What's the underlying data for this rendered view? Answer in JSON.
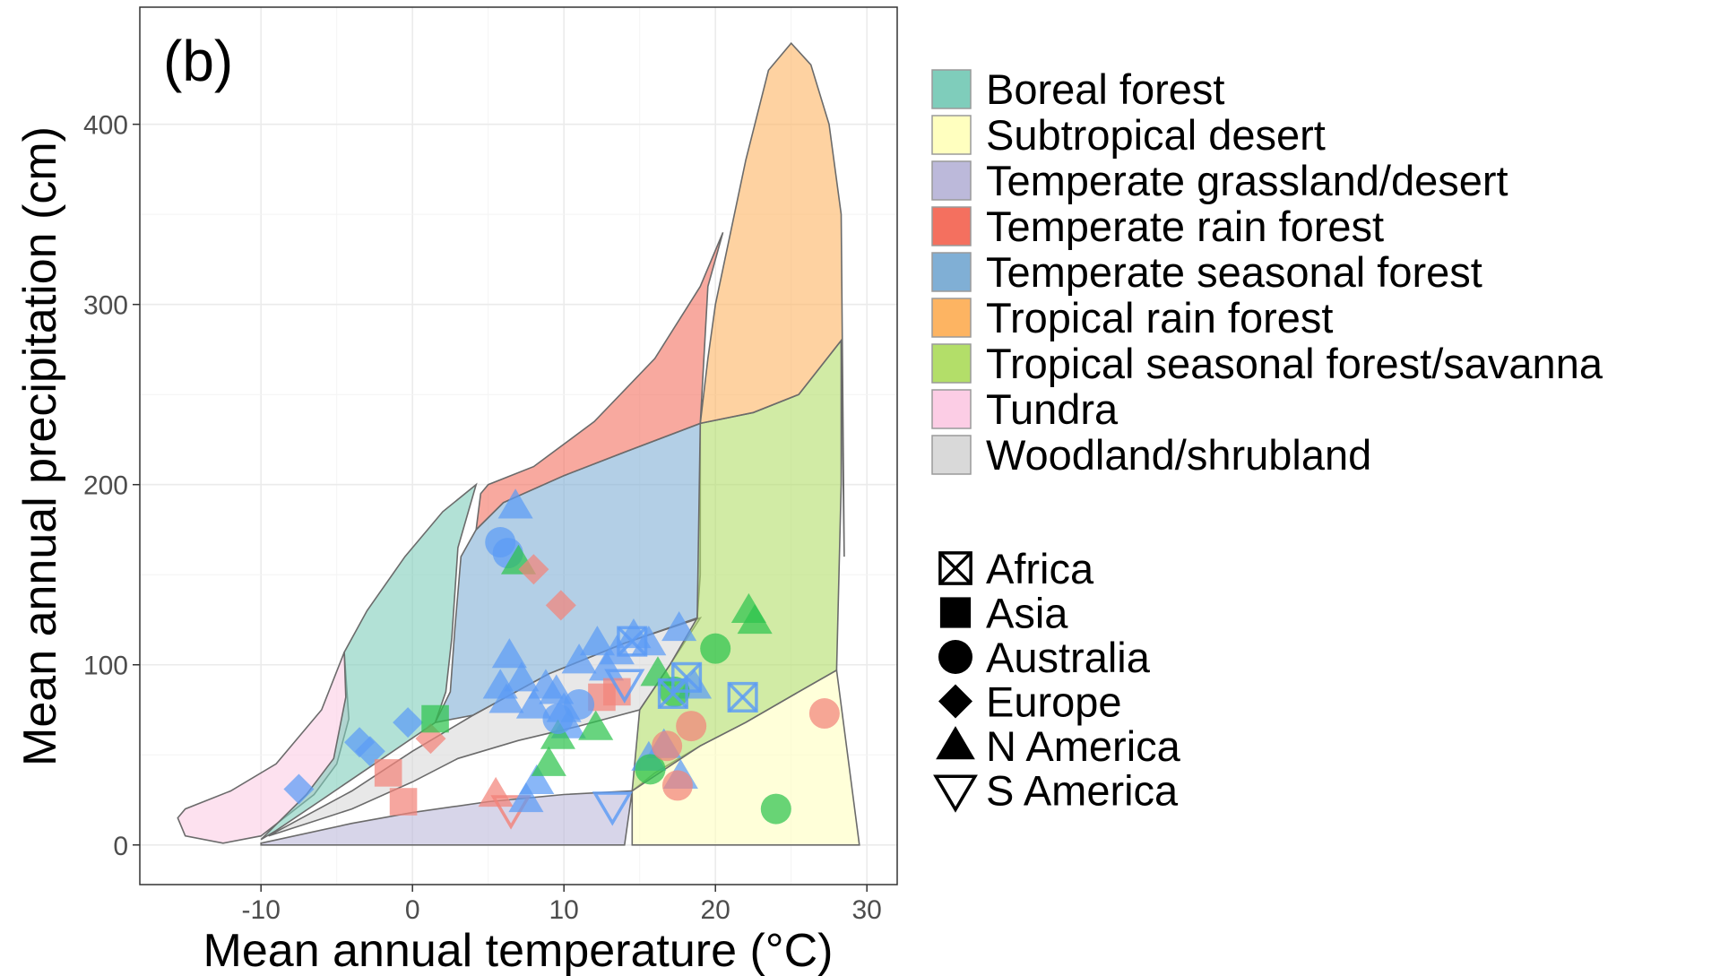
{
  "chart_data": {
    "type": "scatter",
    "panel_label": "(b)",
    "xlabel": "Mean annual temperature (°C)",
    "ylabel": "Mean annual precipitation (cm)",
    "xlim": [
      -18,
      32
    ],
    "ylim": [
      -22,
      465
    ],
    "x_ticks": [
      -10,
      0,
      10,
      20,
      30
    ],
    "y_ticks": [
      0,
      100,
      200,
      300,
      400
    ],
    "grid": true,
    "legend_placement": "right",
    "biomes": [
      {
        "name": "Boreal forest",
        "color": "#7fcdbb"
      },
      {
        "name": "Subtropical desert",
        "color": "#ffffbf"
      },
      {
        "name": "Temperate grassland/desert",
        "color": "#bcb9da"
      },
      {
        "name": "Temperate rain forest",
        "color": "#f4705f"
      },
      {
        "name": "Temperate seasonal forest",
        "color": "#80afd5"
      },
      {
        "name": "Tropical rain forest",
        "color": "#fdb462"
      },
      {
        "name": "Tropical seasonal forest/savanna",
        "color": "#b3de69"
      },
      {
        "name": "Tundra",
        "color": "#fccde5"
      },
      {
        "name": "Woodland/shrubland",
        "color": "#d9d9d9"
      }
    ],
    "regions": [
      {
        "name": "Africa",
        "shape": "boxed-x"
      },
      {
        "name": "Asia",
        "shape": "square"
      },
      {
        "name": "Australia",
        "shape": "circle"
      },
      {
        "name": "Europe",
        "shape": "diamond"
      },
      {
        "name": "N America",
        "shape": "triangle-up"
      },
      {
        "name": "S America",
        "shape": "triangle-down"
      }
    ],
    "point_colors": {
      "blue": "#5b9bf5",
      "green": "#2ec44e",
      "red": "#f2837a"
    },
    "points": [
      {
        "x": -7.5,
        "y": 31,
        "shape": "diamond",
        "color": "blue"
      },
      {
        "x": -3.5,
        "y": 57,
        "shape": "diamond",
        "color": "blue"
      },
      {
        "x": -2.8,
        "y": 52,
        "shape": "diamond",
        "color": "blue"
      },
      {
        "x": -0.3,
        "y": 68,
        "shape": "diamond",
        "color": "blue"
      },
      {
        "x": 1.2,
        "y": 59,
        "shape": "diamond",
        "color": "red"
      },
      {
        "x": 1.5,
        "y": 70,
        "shape": "square",
        "color": "green"
      },
      {
        "x": -1.6,
        "y": 40,
        "shape": "square",
        "color": "red"
      },
      {
        "x": -0.6,
        "y": 24,
        "shape": "square",
        "color": "red"
      },
      {
        "x": 5.5,
        "y": 28,
        "shape": "triangle-up",
        "color": "red"
      },
      {
        "x": 6.5,
        "y": 20,
        "shape": "triangle-down",
        "color": "red"
      },
      {
        "x": 5.8,
        "y": 168,
        "shape": "circle",
        "color": "blue"
      },
      {
        "x": 6.3,
        "y": 162,
        "shape": "circle",
        "color": "blue"
      },
      {
        "x": 6.8,
        "y": 188,
        "shape": "triangle-up",
        "color": "blue"
      },
      {
        "x": 7.0,
        "y": 157,
        "shape": "triangle-up",
        "color": "green"
      },
      {
        "x": 8.0,
        "y": 153,
        "shape": "diamond",
        "color": "red"
      },
      {
        "x": 9.8,
        "y": 133,
        "shape": "diamond",
        "color": "red"
      },
      {
        "x": 6.4,
        "y": 105,
        "shape": "triangle-up",
        "color": "blue"
      },
      {
        "x": 5.8,
        "y": 88,
        "shape": "triangle-up",
        "color": "blue"
      },
      {
        "x": 6.2,
        "y": 80,
        "shape": "triangle-up",
        "color": "blue"
      },
      {
        "x": 7.2,
        "y": 92,
        "shape": "triangle-up",
        "color": "blue"
      },
      {
        "x": 8.0,
        "y": 77,
        "shape": "triangle-up",
        "color": "blue"
      },
      {
        "x": 8.8,
        "y": 88,
        "shape": "triangle-up",
        "color": "blue"
      },
      {
        "x": 9.5,
        "y": 85,
        "shape": "triangle-up",
        "color": "blue"
      },
      {
        "x": 10.0,
        "y": 75,
        "shape": "triangle-up",
        "color": "blue"
      },
      {
        "x": 10.3,
        "y": 66,
        "shape": "triangle-up",
        "color": "blue"
      },
      {
        "x": 11.0,
        "y": 102,
        "shape": "triangle-up",
        "color": "blue"
      },
      {
        "x": 12.2,
        "y": 112,
        "shape": "triangle-up",
        "color": "blue"
      },
      {
        "x": 12.8,
        "y": 98,
        "shape": "triangle-up",
        "color": "blue"
      },
      {
        "x": 13.5,
        "y": 107,
        "shape": "triangle-up",
        "color": "blue"
      },
      {
        "x": 14.6,
        "y": 116,
        "shape": "triangle-up",
        "color": "blue"
      },
      {
        "x": 15.6,
        "y": 112,
        "shape": "triangle-up",
        "color": "blue"
      },
      {
        "x": 17.6,
        "y": 120,
        "shape": "triangle-up",
        "color": "blue"
      },
      {
        "x": 18.6,
        "y": 88,
        "shape": "triangle-up",
        "color": "blue"
      },
      {
        "x": 8.2,
        "y": 35,
        "shape": "triangle-up",
        "color": "blue"
      },
      {
        "x": 7.5,
        "y": 25,
        "shape": "triangle-up",
        "color": "blue"
      },
      {
        "x": 15.6,
        "y": 48,
        "shape": "triangle-up",
        "color": "blue"
      },
      {
        "x": 16.6,
        "y": 55,
        "shape": "triangle-up",
        "color": "blue"
      },
      {
        "x": 17.7,
        "y": 38,
        "shape": "triangle-up",
        "color": "blue"
      },
      {
        "x": 9.6,
        "y": 60,
        "shape": "triangle-up",
        "color": "green"
      },
      {
        "x": 9.0,
        "y": 45,
        "shape": "triangle-up",
        "color": "green"
      },
      {
        "x": 12.1,
        "y": 65,
        "shape": "triangle-up",
        "color": "green"
      },
      {
        "x": 16.2,
        "y": 95,
        "shape": "triangle-up",
        "color": "green"
      },
      {
        "x": 22.2,
        "y": 130,
        "shape": "triangle-up",
        "color": "green"
      },
      {
        "x": 22.6,
        "y": 124,
        "shape": "triangle-up",
        "color": "green"
      },
      {
        "x": 20.0,
        "y": 109,
        "shape": "circle",
        "color": "green"
      },
      {
        "x": 17.3,
        "y": 85,
        "shape": "circle",
        "color": "green"
      },
      {
        "x": 15.7,
        "y": 42,
        "shape": "circle",
        "color": "green"
      },
      {
        "x": 24.0,
        "y": 20,
        "shape": "circle",
        "color": "green"
      },
      {
        "x": 12.5,
        "y": 82,
        "shape": "square",
        "color": "red"
      },
      {
        "x": 13.5,
        "y": 85,
        "shape": "square",
        "color": "red"
      },
      {
        "x": 16.8,
        "y": 55,
        "shape": "circle",
        "color": "red"
      },
      {
        "x": 18.4,
        "y": 66,
        "shape": "circle",
        "color": "red"
      },
      {
        "x": 17.5,
        "y": 33,
        "shape": "circle",
        "color": "red"
      },
      {
        "x": 27.2,
        "y": 73,
        "shape": "circle",
        "color": "red"
      },
      {
        "x": 14.5,
        "y": 113,
        "shape": "boxed-x",
        "color": "blue"
      },
      {
        "x": 18.1,
        "y": 93,
        "shape": "boxed-x",
        "color": "blue"
      },
      {
        "x": 17.2,
        "y": 84,
        "shape": "boxed-x",
        "color": "blue"
      },
      {
        "x": 21.8,
        "y": 82,
        "shape": "boxed-x",
        "color": "blue"
      },
      {
        "x": 13.2,
        "y": 22,
        "shape": "triangle-down",
        "color": "blue"
      },
      {
        "x": 14.0,
        "y": 90,
        "shape": "triangle-down",
        "color": "blue"
      },
      {
        "x": 11.0,
        "y": 78,
        "shape": "circle",
        "color": "blue"
      },
      {
        "x": 9.6,
        "y": 70,
        "shape": "circle",
        "color": "blue"
      }
    ]
  }
}
